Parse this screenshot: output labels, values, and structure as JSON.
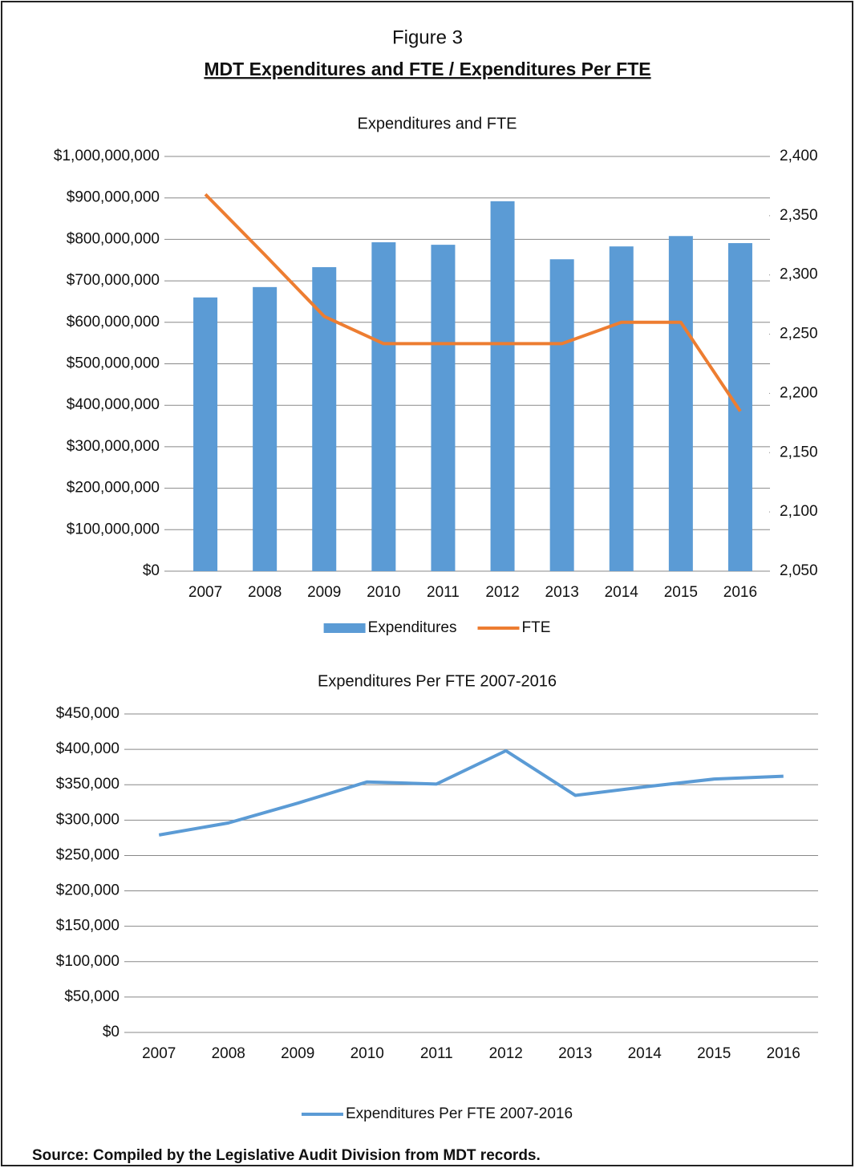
{
  "figure": {
    "label": "Figure 3",
    "title": "MDT Expenditures and FTE / Expenditures Per FTE",
    "source": "Source: Compiled by the Legislative Audit Division from MDT records."
  },
  "chart_data": [
    {
      "type": "bar",
      "title": "Expenditures and FTE",
      "categories": [
        "2007",
        "2008",
        "2009",
        "2010",
        "2011",
        "2012",
        "2013",
        "2014",
        "2015",
        "2016"
      ],
      "series": [
        {
          "name": "Expenditures",
          "type": "bar",
          "color": "#5b9bd5",
          "values": [
            660000000,
            685000000,
            733000000,
            793000000,
            787000000,
            892000000,
            752000000,
            783000000,
            808000000,
            791000000
          ]
        },
        {
          "name": "FTE",
          "type": "line",
          "axis": "y2",
          "color": "#ed7d31",
          "values": [
            2368,
            2317,
            2265,
            2242,
            2242,
            2242,
            2242,
            2260,
            2260,
            2185
          ]
        }
      ],
      "ylim": [
        0,
        1000000000
      ],
      "yticks": [
        {
          "value": 0,
          "label": "$0"
        },
        {
          "value": 100000000,
          "label": "$100,000,000"
        },
        {
          "value": 200000000,
          "label": "$200,000,000"
        },
        {
          "value": 300000000,
          "label": "$300,000,000"
        },
        {
          "value": 400000000,
          "label": "$400,000,000"
        },
        {
          "value": 500000000,
          "label": "$500,000,000"
        },
        {
          "value": 600000000,
          "label": "$600,000,000"
        },
        {
          "value": 700000000,
          "label": "$700,000,000"
        },
        {
          "value": 800000000,
          "label": "$800,000,000"
        },
        {
          "value": 900000000,
          "label": "$900,000,000"
        },
        {
          "value": 1000000000,
          "label": "$1,000,000,000"
        }
      ],
      "y2lim": [
        2050,
        2400
      ],
      "y2ticks": [
        {
          "value": 2050,
          "label": "2,050"
        },
        {
          "value": 2100,
          "label": "2,100"
        },
        {
          "value": 2150,
          "label": "2,150"
        },
        {
          "value": 2200,
          "label": "2,200"
        },
        {
          "value": 2250,
          "label": "2,250"
        },
        {
          "value": 2300,
          "label": "2,300"
        },
        {
          "value": 2350,
          "label": "2,350"
        },
        {
          "value": 2400,
          "label": "2,400"
        }
      ],
      "grid": true,
      "legend": "bottom"
    },
    {
      "type": "line",
      "title": "Expenditures Per FTE 2007-2016",
      "categories": [
        "2007",
        "2008",
        "2009",
        "2010",
        "2011",
        "2012",
        "2013",
        "2014",
        "2015",
        "2016"
      ],
      "series": [
        {
          "name": "Expenditures Per FTE 2007-2016",
          "type": "line",
          "color": "#5b9bd5",
          "values": [
            279000,
            296000,
            324000,
            354000,
            351000,
            398000,
            335000,
            347000,
            358000,
            362000
          ]
        }
      ],
      "ylim": [
        0,
        450000
      ],
      "yticks": [
        {
          "value": 0,
          "label": "$0"
        },
        {
          "value": 50000,
          "label": "$50,000"
        },
        {
          "value": 100000,
          "label": "$100,000"
        },
        {
          "value": 150000,
          "label": "$150,000"
        },
        {
          "value": 200000,
          "label": "$200,000"
        },
        {
          "value": 250000,
          "label": "$250,000"
        },
        {
          "value": 300000,
          "label": "$300,000"
        },
        {
          "value": 350000,
          "label": "$350,000"
        },
        {
          "value": 400000,
          "label": "$400,000"
        },
        {
          "value": 450000,
          "label": "$450,000"
        }
      ],
      "grid": true,
      "legend": "bottom"
    }
  ]
}
